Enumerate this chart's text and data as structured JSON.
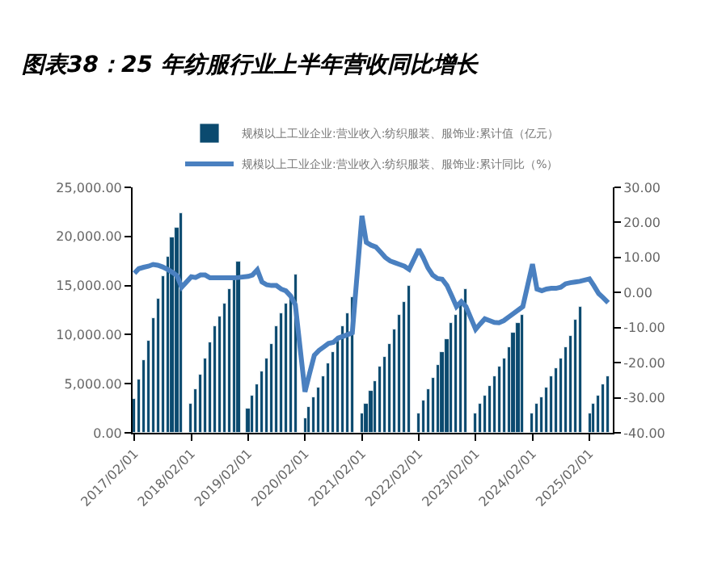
{
  "chart_data": {
    "type": "bar",
    "title": "图表38：25 年纺服行业上半年营收同比增长",
    "x": [
      "2017-02",
      "2017-03",
      "2017-04",
      "2017-05",
      "2017-06",
      "2017-07",
      "2017-08",
      "2017-09",
      "2017-10",
      "2017-11",
      "2017-12",
      "2018-02",
      "2018-03",
      "2018-04",
      "2018-05",
      "2018-06",
      "2018-07",
      "2018-08",
      "2018-09",
      "2018-10",
      "2018-11",
      "2018-12",
      "2019-02",
      "2019-03",
      "2019-04",
      "2019-05",
      "2019-06",
      "2019-07",
      "2019-08",
      "2019-09",
      "2019-10",
      "2019-11",
      "2019-12",
      "2020-02",
      "2020-03",
      "2020-04",
      "2020-05",
      "2020-06",
      "2020-07",
      "2020-08",
      "2020-09",
      "2020-10",
      "2020-11",
      "2020-12",
      "2021-02",
      "2021-03",
      "2021-04",
      "2021-05",
      "2021-06",
      "2021-07",
      "2021-08",
      "2021-09",
      "2021-10",
      "2021-11",
      "2021-12",
      "2022-02",
      "2022-03",
      "2022-04",
      "2022-05",
      "2022-06",
      "2022-07",
      "2022-08",
      "2022-09",
      "2022-10",
      "2022-11",
      "2022-12",
      "2023-02",
      "2023-03",
      "2023-04",
      "2023-05",
      "2023-06",
      "2023-07",
      "2023-08",
      "2023-09",
      "2023-10",
      "2023-11",
      "2023-12",
      "2024-02",
      "2024-03",
      "2024-04",
      "2024-05",
      "2024-06",
      "2024-07",
      "2024-08",
      "2024-09",
      "2024-10",
      "2024-11",
      "2024-12",
      "2025-02",
      "2025-03",
      "2025-04",
      "2025-05",
      "2025-06"
    ],
    "series": [
      {
        "name": "规模以上工业企业:营业收入:纺织服装、服饰业:累计值（亿元）",
        "color": "#0b4a6f",
        "values": [
          3400,
          5400,
          7400,
          9400,
          11700,
          13700,
          15900,
          17900,
          19900,
          20900,
          22300,
          2900,
          4400,
          6000,
          7600,
          9200,
          10800,
          11800,
          13100,
          14600,
          16000,
          17400,
          2400,
          3800,
          5000,
          6200,
          7600,
          9000,
          10800,
          12100,
          13100,
          14000,
          16100,
          1500,
          2600,
          3700,
          4600,
          5800,
          7000,
          8200,
          9400,
          10800,
          12100,
          13800,
          1900,
          3000,
          4200,
          5200,
          6700,
          7800,
          9100,
          10500,
          12000,
          13400,
          14900,
          2000,
          3300,
          4400,
          5600,
          6900,
          8200,
          9600,
          11200,
          12000,
          13300,
          14600,
          1900,
          3000,
          3800,
          4700,
          5700,
          6700,
          7600,
          8800,
          10200,
          11200,
          12000,
          1900,
          2900,
          3700,
          4600,
          5700,
          6500,
          7500,
          8800,
          9900,
          11500,
          12800,
          1900,
          2900,
          3800,
          4900,
          5700
        ]
      },
      {
        "name": "规模以上工业企业:营业收入:纺织服装、服饰业:累计同比（%）",
        "type": "line",
        "axis": "y2",
        "color": "#4a80c0",
        "values": [
          5.5,
          6.8,
          7.2,
          7.5,
          8.0,
          7.8,
          7.3,
          6.6,
          5.8,
          4.8,
          1.5,
          4.5,
          4.3,
          5.0,
          5.0,
          4.2,
          4.2,
          4.2,
          4.2,
          4.2,
          4.2,
          4.3,
          4.6,
          5.0,
          6.5,
          3.0,
          2.2,
          2.0,
          2.0,
          1.0,
          0.5,
          -1.0,
          -3.5,
          -28.3,
          -23.2,
          -17.9,
          -16.5,
          -15.5,
          -14.5,
          -14.2,
          -13.0,
          -12.5,
          -12.0,
          -11.5,
          21.9,
          14.3,
          13.5,
          13.0,
          11.5,
          10.0,
          9.0,
          8.5,
          8.0,
          7.5,
          6.6,
          12.3,
          10.0,
          7.0,
          5.0,
          4.0,
          3.8,
          2.0,
          -1.0,
          -4.0,
          -2.6,
          -4.0,
          -10.5,
          -9.0,
          -7.5,
          -8.0,
          -8.5,
          -8.6,
          -8.0,
          -7.0,
          -6.0,
          -5.0,
          -4.0,
          8.1,
          1.0,
          0.5,
          1.0,
          1.2,
          1.2,
          1.5,
          2.5,
          2.8,
          3.0,
          3.2,
          3.9,
          2.0,
          -0.3,
          -1.5,
          -2.9
        ]
      }
    ],
    "xlim": [
      "2017-01-20",
      "2025-07-01"
    ],
    "xticks": [
      {
        "value": "2017-02-01",
        "label": "2017/02/01"
      },
      {
        "value": "2018-02-01",
        "label": "2018/02/01"
      },
      {
        "value": "2019-02-01",
        "label": "2019/02/01"
      },
      {
        "value": "2020-02-01",
        "label": "2020/02/01"
      },
      {
        "value": "2021-02-01",
        "label": "2021/02/01"
      },
      {
        "value": "2022-02-01",
        "label": "2022/02/01"
      },
      {
        "value": "2023-02-01",
        "label": "2023/02/01"
      },
      {
        "value": "2024-02-01",
        "label": "2024/02/01"
      },
      {
        "value": "2025-02-01",
        "label": "2025/02/01"
      }
    ],
    "ylim": [
      0,
      25000
    ],
    "yticks": [
      {
        "value": 0,
        "label": "0.00"
      },
      {
        "value": 5000,
        "label": "5,000.00"
      },
      {
        "value": 10000,
        "label": "10,000.00"
      },
      {
        "value": 15000,
        "label": "15,000.00"
      },
      {
        "value": 20000,
        "label": "20,000.00"
      },
      {
        "value": 25000,
        "label": "25,000.00"
      }
    ],
    "y2lim": [
      -40,
      30
    ],
    "y2ticks": [
      {
        "value": -40,
        "label": "-40.00"
      },
      {
        "value": -30,
        "label": "-30.00"
      },
      {
        "value": -20,
        "label": "-20.00"
      },
      {
        "value": -10,
        "label": "-10.00"
      },
      {
        "value": 0,
        "label": "0.00"
      },
      {
        "value": 10,
        "label": "10.00"
      },
      {
        "value": 20,
        "label": "20.00"
      },
      {
        "value": 30,
        "label": "30.00"
      }
    ],
    "grid": false,
    "legend": "top",
    "marker": "none",
    "line_style": "solid"
  }
}
